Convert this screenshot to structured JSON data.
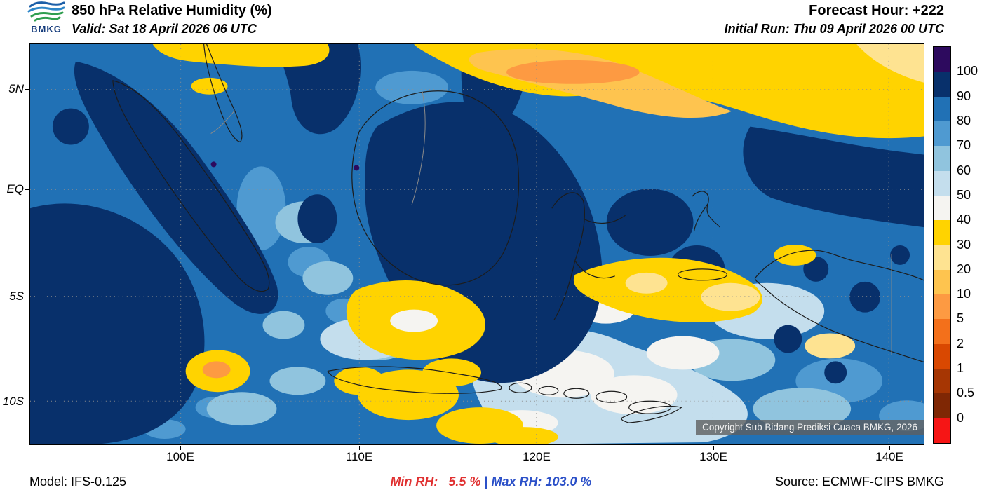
{
  "header": {
    "logo_text": "BMKG",
    "title": "850 hPa Relative Humidity (%)",
    "valid": "Valid: Sat 18 April 2026 06 UTC",
    "forecast_hour": "Forecast Hour: +222",
    "initial_run": "Initial Run: Thu 09 April 2026 00 UTC"
  },
  "map": {
    "lat_labels": [
      "5N",
      "EQ",
      "5S",
      "10S"
    ],
    "lon_labels": [
      "100E",
      "110E",
      "120E",
      "130E",
      "140E"
    ],
    "copyright": "Copyright Sub Bidang Prediksi Cuaca BMKG, 2026"
  },
  "colorbar": {
    "tick_labels": [
      "100",
      "90",
      "80",
      "70",
      "60",
      "50",
      "40",
      "30",
      "20",
      "10",
      "5",
      "2",
      "1",
      "0.5",
      "0"
    ],
    "segments": [
      "#2d0a5e",
      "#08306b",
      "#2171b5",
      "#4f9ad1",
      "#90c4de",
      "#c4deed",
      "#f5f4f1",
      "#ffd300",
      "#fee391",
      "#fec44f",
      "#fd9a42",
      "#f3701b",
      "#d94801",
      "#a63603",
      "#7f2704",
      "#f61515"
    ]
  },
  "footer": {
    "model": "Model: IFS-0.125",
    "min_rh": "Min RH:   5.5 %",
    "separator": " | ",
    "max_rh": "Max RH: 103.0 %",
    "source": "Source: ECMWF-CIPS BMKG"
  }
}
